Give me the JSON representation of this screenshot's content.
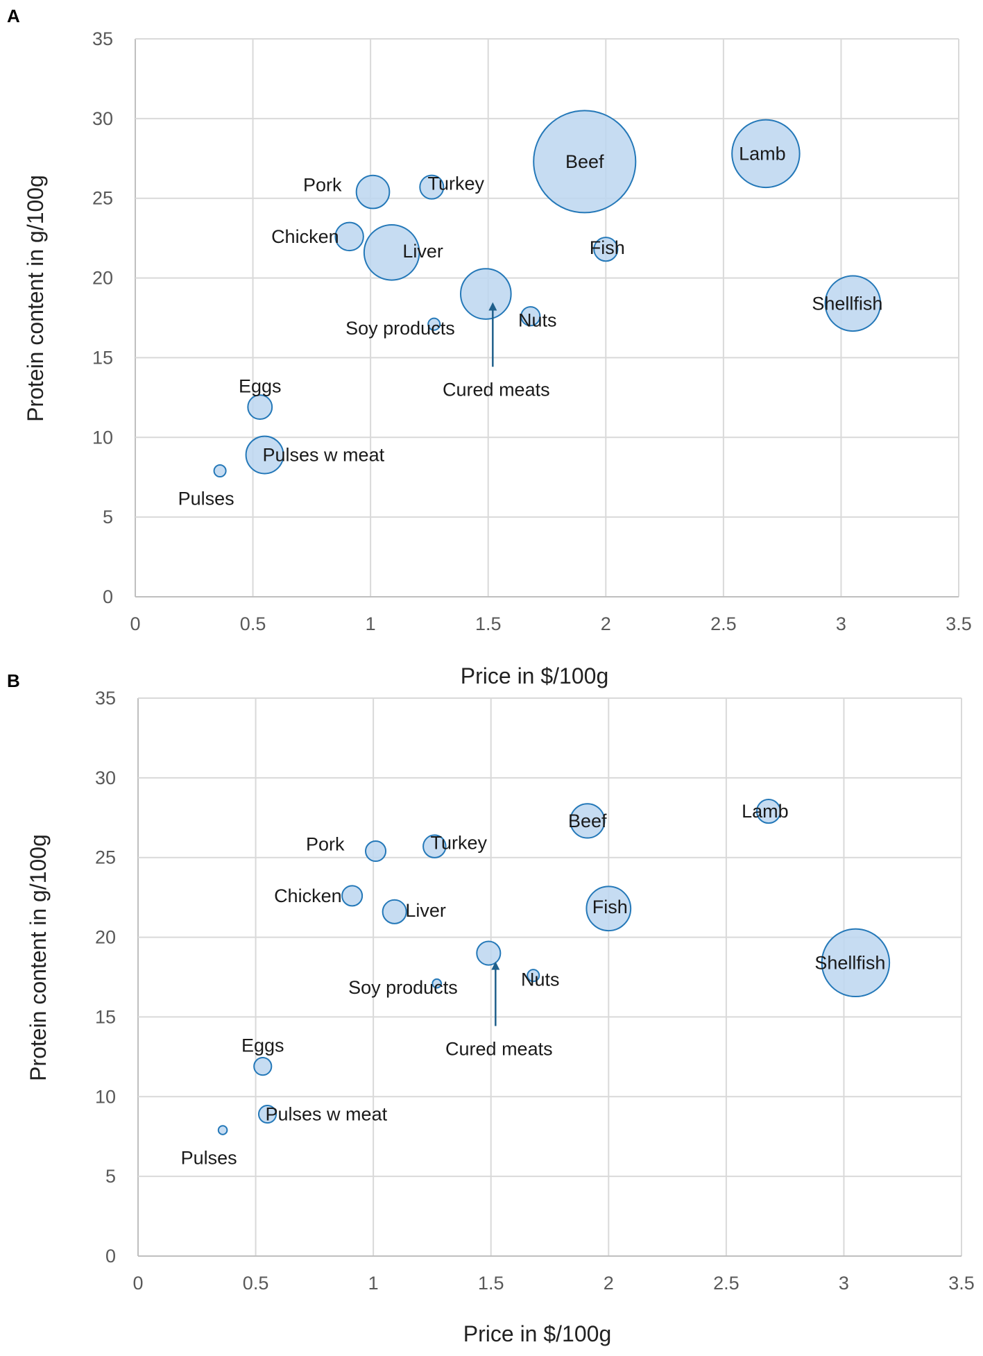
{
  "colors": {
    "bubble_fill": "#bcd6f0",
    "bubble_stroke": "#2478b8",
    "grid": "#d9d9d9",
    "arrow": "#1f5f8b"
  },
  "chart_data": [
    {
      "type": "scatter",
      "panel": "A",
      "title": "",
      "xlabel": "Price in $/100g",
      "ylabel": "Protein content in g/100g",
      "xlim": [
        0,
        3.5
      ],
      "ylim": [
        0,
        35
      ],
      "x_ticks": [
        "0",
        "0.5",
        "1",
        "1.5",
        "2",
        "2.5",
        "3",
        "3.5"
      ],
      "y_ticks": [
        "0",
        "5",
        "10",
        "15",
        "20",
        "25",
        "30",
        "35"
      ],
      "grid": true,
      "annotation": "Cured meats",
      "points": [
        {
          "label": "Beef",
          "x": 1.91,
          "y": 27.3,
          "size": 41
        },
        {
          "label": "Lamb",
          "x": 2.68,
          "y": 27.8,
          "size": 18
        },
        {
          "label": "Shellfish",
          "x": 3.05,
          "y": 18.4,
          "size": 12
        },
        {
          "label": "Pork",
          "x": 1.01,
          "y": 25.4,
          "size": 4.3
        },
        {
          "label": "Turkey",
          "x": 1.26,
          "y": 25.7,
          "size": 2.2
        },
        {
          "label": "Chicken",
          "x": 0.91,
          "y": 22.6,
          "size": 3.1
        },
        {
          "label": "Liver",
          "x": 1.09,
          "y": 21.6,
          "size": 12
        },
        {
          "label": "Fish",
          "x": 2.0,
          "y": 21.8,
          "size": 2.2
        },
        {
          "label": "Cured meats",
          "x": 1.49,
          "y": 19.0,
          "size": 10
        },
        {
          "label": "Nuts",
          "x": 1.68,
          "y": 17.6,
          "size": 1.4
        },
        {
          "label": "Soy products",
          "x": 1.27,
          "y": 17.1,
          "size": 0.55
        },
        {
          "label": "Eggs",
          "x": 0.53,
          "y": 11.9,
          "size": 2.3
        },
        {
          "label": "Pulses w meat",
          "x": 0.55,
          "y": 8.9,
          "size": 5.5
        },
        {
          "label": "Pulses",
          "x": 0.36,
          "y": 7.9,
          "size": 0.55
        }
      ]
    },
    {
      "type": "scatter",
      "panel": "B",
      "title": "",
      "xlabel": "Price in $/100g",
      "ylabel": "Protein content in g/100g",
      "xlim": [
        0,
        3.5
      ],
      "ylim": [
        0,
        35
      ],
      "x_ticks": [
        "0",
        "0.5",
        "1",
        "1.5",
        "2",
        "2.5",
        "3",
        "3.5"
      ],
      "y_ticks": [
        "0",
        "5",
        "10",
        "15",
        "20",
        "25",
        "30",
        "35"
      ],
      "grid": true,
      "annotation": "Cured meats",
      "points": [
        {
          "label": "Beef",
          "x": 1.91,
          "y": 27.3,
          "size": 4.6
        },
        {
          "label": "Lamb",
          "x": 2.68,
          "y": 27.9,
          "size": 2.2
        },
        {
          "label": "Shellfish",
          "x": 3.05,
          "y": 18.4,
          "size": 18
        },
        {
          "label": "Pork",
          "x": 1.01,
          "y": 25.4,
          "size": 1.6
        },
        {
          "label": "Turkey",
          "x": 1.26,
          "y": 25.7,
          "size": 2.0
        },
        {
          "label": "Chicken",
          "x": 0.91,
          "y": 22.6,
          "size": 1.6
        },
        {
          "label": "Liver",
          "x": 1.09,
          "y": 21.6,
          "size": 2.2
        },
        {
          "label": "Fish",
          "x": 2.0,
          "y": 21.8,
          "size": 7.7
        },
        {
          "label": "Cured meats",
          "x": 1.49,
          "y": 19.0,
          "size": 2.2
        },
        {
          "label": "Nuts",
          "x": 1.68,
          "y": 17.6,
          "size": 0.55
        },
        {
          "label": "Soy products",
          "x": 1.27,
          "y": 17.1,
          "size": 0.3
        },
        {
          "label": "Eggs",
          "x": 0.53,
          "y": 11.9,
          "size": 1.2
        },
        {
          "label": "Pulses w meat",
          "x": 0.55,
          "y": 8.9,
          "size": 1.2
        },
        {
          "label": "Pulses",
          "x": 0.36,
          "y": 7.9,
          "size": 0.3
        }
      ]
    }
  ]
}
